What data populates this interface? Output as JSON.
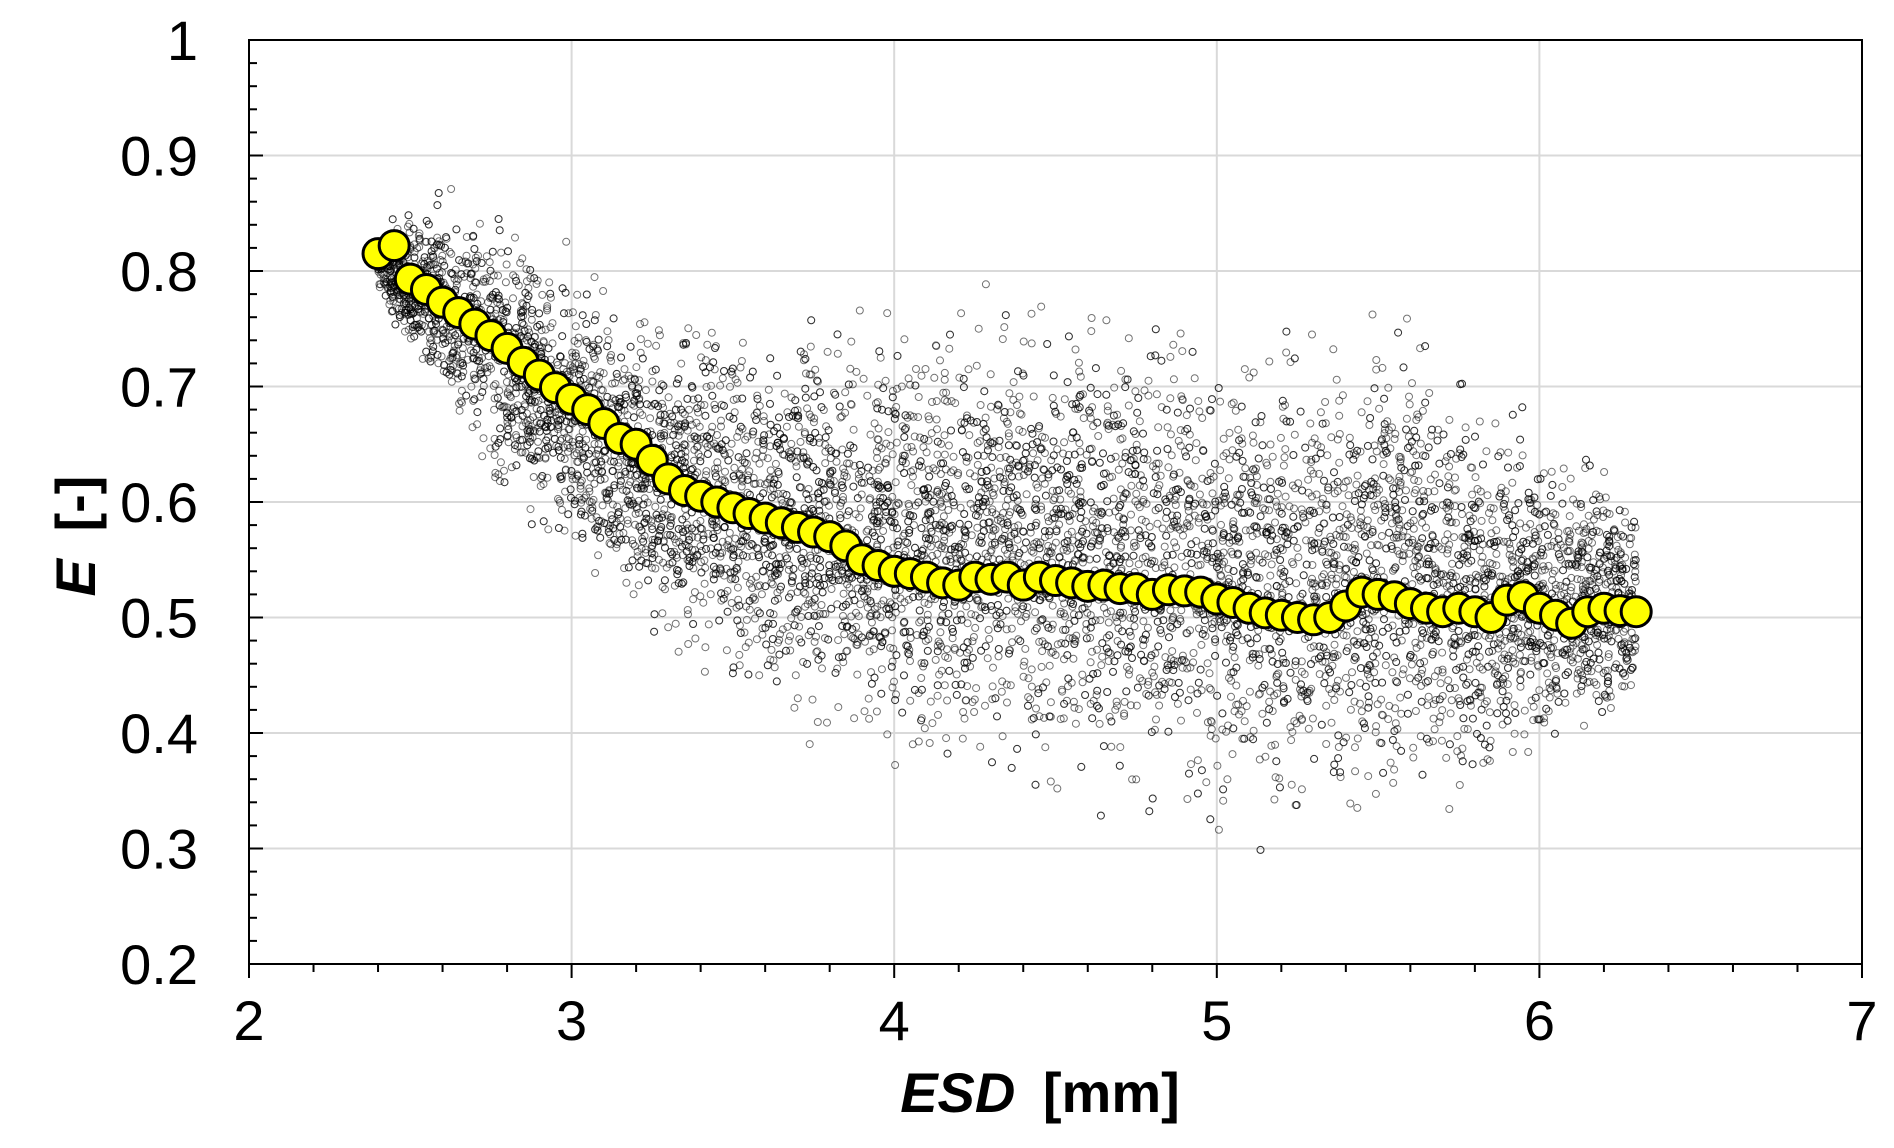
{
  "chart_data": {
    "type": "scatter",
    "title": "",
    "xlabel": {
      "variable": "ESD",
      "unit": "[mm]"
    },
    "ylabel": {
      "variable": "E",
      "unit": "[-]"
    },
    "xlim": [
      2,
      7
    ],
    "ylim": [
      0.2,
      1
    ],
    "x_ticks": [
      2,
      3,
      4,
      5,
      6,
      7
    ],
    "y_ticks": [
      0.2,
      0.3,
      0.4,
      0.5,
      0.6,
      0.7,
      0.8,
      0.9,
      1
    ],
    "x_tick_labels": [
      "2",
      "3",
      "4",
      "5",
      "6",
      "7"
    ],
    "y_tick_labels": [
      "0.2",
      "0.3",
      "0.4",
      "0.5",
      "0.6",
      "0.7",
      "0.8",
      "0.9",
      "1"
    ],
    "x_minor_step": 0.2,
    "y_minor_step": 0.02,
    "grid": true,
    "legend": "none",
    "colors": {
      "scatter_edge": "#000000",
      "mean_fill": "#ffff00",
      "mean_edge": "#000000",
      "grid": "#d9d9d9"
    },
    "series": [
      {
        "marker": "small open circle",
        "description": "dense cloud of individual measurements",
        "cloud_envelope": [
          {
            "x": 2.4,
            "y_low": 0.78,
            "y_high": 0.84
          },
          {
            "x": 2.6,
            "y_low": 0.66,
            "y_high": 0.88
          },
          {
            "x": 2.8,
            "y_low": 0.58,
            "y_high": 0.86
          },
          {
            "x": 3.0,
            "y_low": 0.52,
            "y_high": 0.82
          },
          {
            "x": 3.2,
            "y_low": 0.47,
            "y_high": 0.79
          },
          {
            "x": 3.5,
            "y_low": 0.41,
            "y_high": 0.77
          },
          {
            "x": 4.0,
            "y_low": 0.36,
            "y_high": 0.78
          },
          {
            "x": 4.5,
            "y_low": 0.33,
            "y_high": 0.79
          },
          {
            "x": 5.0,
            "y_low": 0.3,
            "y_high": 0.79
          },
          {
            "x": 5.3,
            "y_low": 0.29,
            "y_high": 0.76
          },
          {
            "x": 5.5,
            "y_low": 0.3,
            "y_high": 0.82
          },
          {
            "x": 5.8,
            "y_low": 0.32,
            "y_high": 0.72
          },
          {
            "x": 6.1,
            "y_low": 0.37,
            "y_high": 0.67
          },
          {
            "x": 6.3,
            "y_low": 0.4,
            "y_high": 0.62
          }
        ]
      },
      {
        "marker": "large filled circle",
        "x": [
          2.4,
          2.45,
          2.5,
          2.55,
          2.6,
          2.65,
          2.7,
          2.75,
          2.8,
          2.85,
          2.9,
          2.95,
          3.0,
          3.05,
          3.1,
          3.15,
          3.2,
          3.25,
          3.3,
          3.35,
          3.4,
          3.45,
          3.5,
          3.55,
          3.6,
          3.65,
          3.7,
          3.75,
          3.8,
          3.85,
          3.9,
          3.95,
          4.0,
          4.05,
          4.1,
          4.15,
          4.2,
          4.25,
          4.3,
          4.35,
          4.4,
          4.45,
          4.5,
          4.55,
          4.6,
          4.65,
          4.7,
          4.75,
          4.8,
          4.85,
          4.9,
          4.95,
          5.0,
          5.05,
          5.1,
          5.15,
          5.2,
          5.25,
          5.3,
          5.35,
          5.4,
          5.45,
          5.5,
          5.55,
          5.6,
          5.65,
          5.7,
          5.75,
          5.8,
          5.85,
          5.9,
          5.95,
          6.0,
          6.05,
          6.1,
          6.15,
          6.2,
          6.25,
          6.3
        ],
        "y": [
          0.815,
          0.822,
          0.793,
          0.784,
          0.773,
          0.764,
          0.754,
          0.744,
          0.733,
          0.721,
          0.71,
          0.699,
          0.689,
          0.68,
          0.668,
          0.655,
          0.65,
          0.636,
          0.62,
          0.61,
          0.605,
          0.6,
          0.595,
          0.59,
          0.586,
          0.582,
          0.578,
          0.574,
          0.57,
          0.562,
          0.55,
          0.545,
          0.54,
          0.538,
          0.535,
          0.53,
          0.528,
          0.535,
          0.533,
          0.535,
          0.528,
          0.535,
          0.532,
          0.53,
          0.527,
          0.528,
          0.525,
          0.525,
          0.52,
          0.524,
          0.523,
          0.522,
          0.516,
          0.513,
          0.508,
          0.504,
          0.502,
          0.5,
          0.498,
          0.5,
          0.51,
          0.522,
          0.52,
          0.518,
          0.512,
          0.508,
          0.505,
          0.508,
          0.505,
          0.5,
          0.515,
          0.518,
          0.508,
          0.502,
          0.495,
          0.505,
          0.508,
          0.506,
          0.505
        ]
      }
    ]
  }
}
